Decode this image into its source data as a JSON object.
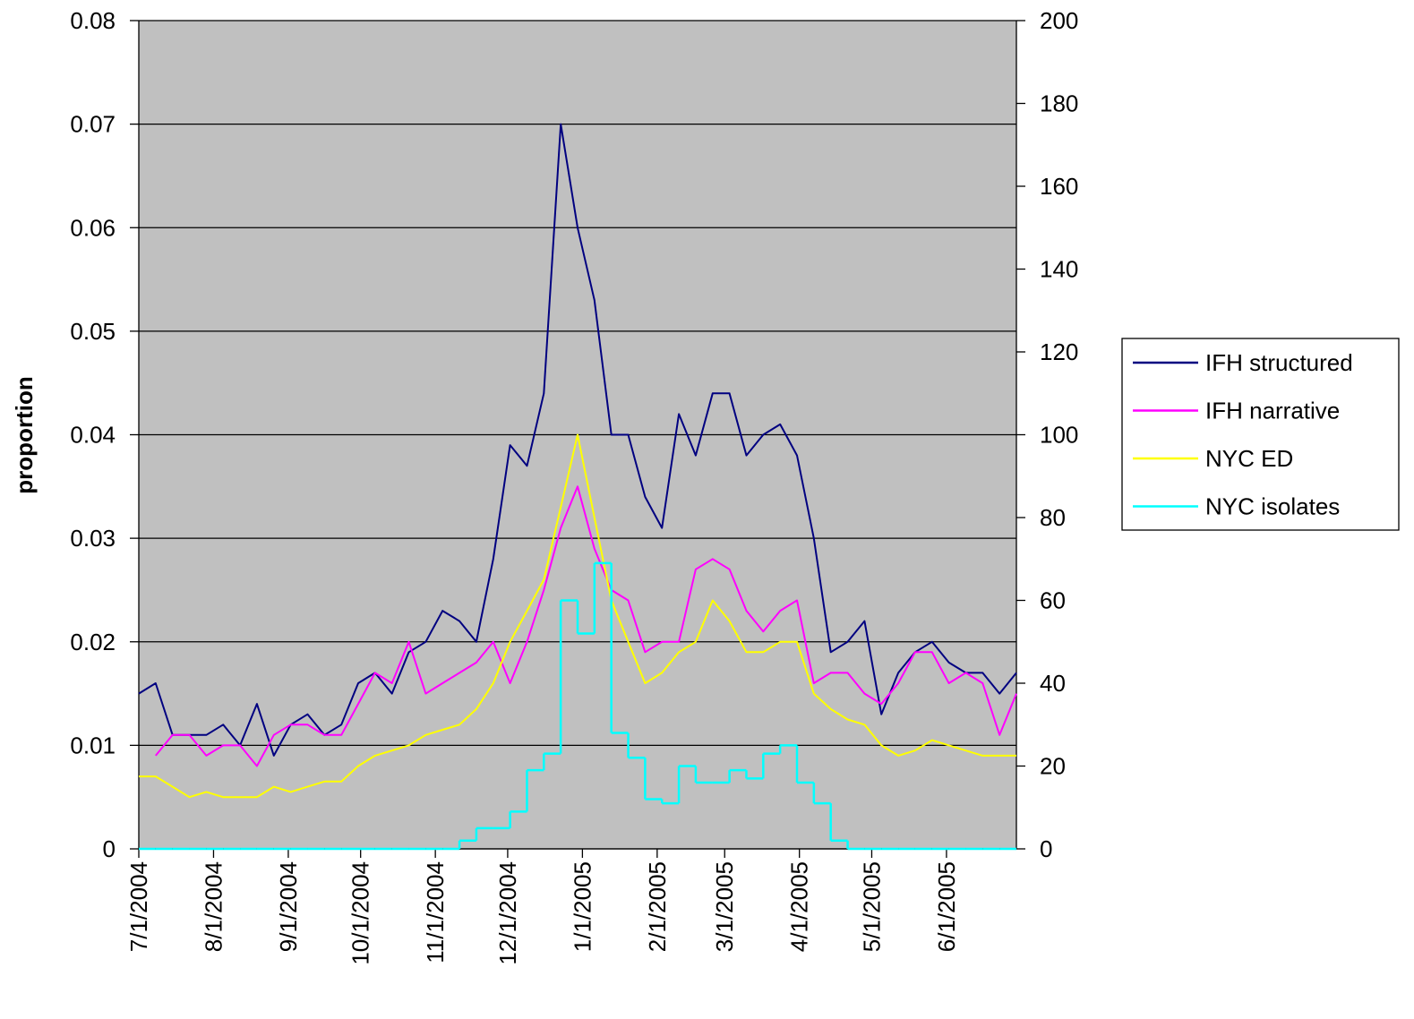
{
  "chart_data": {
    "type": "line",
    "y_label": "proportion",
    "x": [
      "7/1/2004",
      "7/8/2004",
      "7/15/2004",
      "7/22/2004",
      "7/29/2004",
      "8/5/2004",
      "8/12/2004",
      "8/19/2004",
      "8/26/2004",
      "9/2/2004",
      "9/9/2004",
      "9/16/2004",
      "9/23/2004",
      "9/30/2004",
      "10/7/2004",
      "10/14/2004",
      "10/21/2004",
      "10/28/2004",
      "11/4/2004",
      "11/11/2004",
      "11/18/2004",
      "11/25/2004",
      "12/2/2004",
      "12/9/2004",
      "12/16/2004",
      "12/23/2004",
      "12/30/2004",
      "1/6/2005",
      "1/13/2005",
      "1/20/2005",
      "1/27/2005",
      "2/3/2005",
      "2/10/2005",
      "2/17/2005",
      "2/24/2005",
      "3/3/2005",
      "3/10/2005",
      "3/17/2005",
      "3/24/2005",
      "3/31/2005",
      "4/7/2005",
      "4/14/2005",
      "4/21/2005",
      "4/28/2005",
      "5/5/2005",
      "5/12/2005",
      "5/19/2005",
      "5/26/2005",
      "6/2/2005",
      "6/9/2005",
      "6/16/2005",
      "6/23/2005",
      "6/30/2005"
    ],
    "xlim": [
      "7/1/2004",
      "6/30/2005"
    ],
    "xticks": [
      "7/1/2004",
      "8/1/2004",
      "9/1/2004",
      "10/1/2004",
      "11/1/2004",
      "12/1/2004",
      "1/1/2005",
      "2/1/2005",
      "3/1/2005",
      "4/1/2005",
      "5/1/2005",
      "6/1/2005"
    ],
    "ylim": [
      0,
      0.08
    ],
    "yticks": [
      0,
      0.01,
      0.02,
      0.03,
      0.04,
      0.05,
      0.06,
      0.07,
      0.08
    ],
    "y2lim": [
      0,
      200
    ],
    "y2ticks": [
      0,
      20,
      40,
      60,
      80,
      100,
      120,
      140,
      160,
      180,
      200
    ],
    "grid": true,
    "legend": "right",
    "series": [
      {
        "name": "IFH structured",
        "color": "#000080",
        "values": [
          0.015,
          0.016,
          0.011,
          0.011,
          0.011,
          0.012,
          0.01,
          0.014,
          0.009,
          0.012,
          0.013,
          0.011,
          0.012,
          0.016,
          0.017,
          0.015,
          0.019,
          0.02,
          0.023,
          0.022,
          0.02,
          0.028,
          0.039,
          0.037,
          0.044,
          0.07,
          0.06,
          0.053,
          0.04,
          0.04,
          0.034,
          0.031,
          0.042,
          0.038,
          0.044,
          0.044,
          0.038,
          0.04,
          0.041,
          0.038,
          0.03,
          0.019,
          0.02,
          0.022,
          0.013,
          0.017,
          0.019,
          0.02,
          0.018,
          0.017,
          0.017,
          0.015,
          0.017
        ]
      },
      {
        "name": "IFH narrative",
        "color": "#ff00ff",
        "values": [
          null,
          0.009,
          0.011,
          0.011,
          0.009,
          0.01,
          0.01,
          0.008,
          0.011,
          0.012,
          0.012,
          0.011,
          0.011,
          0.014,
          0.017,
          0.016,
          0.02,
          0.015,
          0.016,
          0.017,
          0.018,
          0.02,
          0.016,
          0.02,
          0.025,
          0.031,
          0.035,
          0.029,
          0.025,
          0.024,
          0.019,
          0.02,
          0.02,
          0.027,
          0.028,
          0.027,
          0.023,
          0.021,
          0.023,
          0.024,
          0.016,
          0.017,
          0.017,
          0.015,
          0.014,
          0.016,
          0.019,
          0.019,
          0.016,
          0.017,
          0.016,
          0.011,
          0.015
        ]
      },
      {
        "name": "NYC ED",
        "color": "#ffff00",
        "values": [
          0.007,
          0.007,
          0.006,
          0.005,
          0.0055,
          0.005,
          0.005,
          0.005,
          0.006,
          0.0055,
          0.006,
          0.0065,
          0.0065,
          0.008,
          0.009,
          0.0095,
          0.01,
          0.011,
          0.0115,
          0.012,
          0.0135,
          0.016,
          0.02,
          0.023,
          0.026,
          0.033,
          0.04,
          0.032,
          0.024,
          0.02,
          0.016,
          0.017,
          0.019,
          0.02,
          0.024,
          0.022,
          0.019,
          0.019,
          0.02,
          0.02,
          0.015,
          0.0135,
          0.0125,
          0.012,
          0.01,
          0.009,
          0.0095,
          0.0105,
          0.01,
          0.0095,
          0.009,
          0.009,
          0.009
        ]
      },
      {
        "name": "NYC isolates",
        "color": "#00ffff",
        "axis": "y2",
        "drawstyle": "steps-post",
        "values": [
          0,
          0,
          0,
          0,
          0,
          0,
          0,
          0,
          0,
          0,
          0,
          0,
          0,
          0,
          0,
          0,
          0,
          0,
          0,
          2,
          5,
          5,
          9,
          19,
          23,
          60,
          52,
          69,
          28,
          22,
          12,
          11,
          20,
          16,
          16,
          19,
          17,
          23,
          25,
          16,
          11,
          2,
          0,
          0,
          0,
          0,
          0,
          0,
          0,
          0,
          0,
          0,
          0
        ]
      }
    ]
  }
}
